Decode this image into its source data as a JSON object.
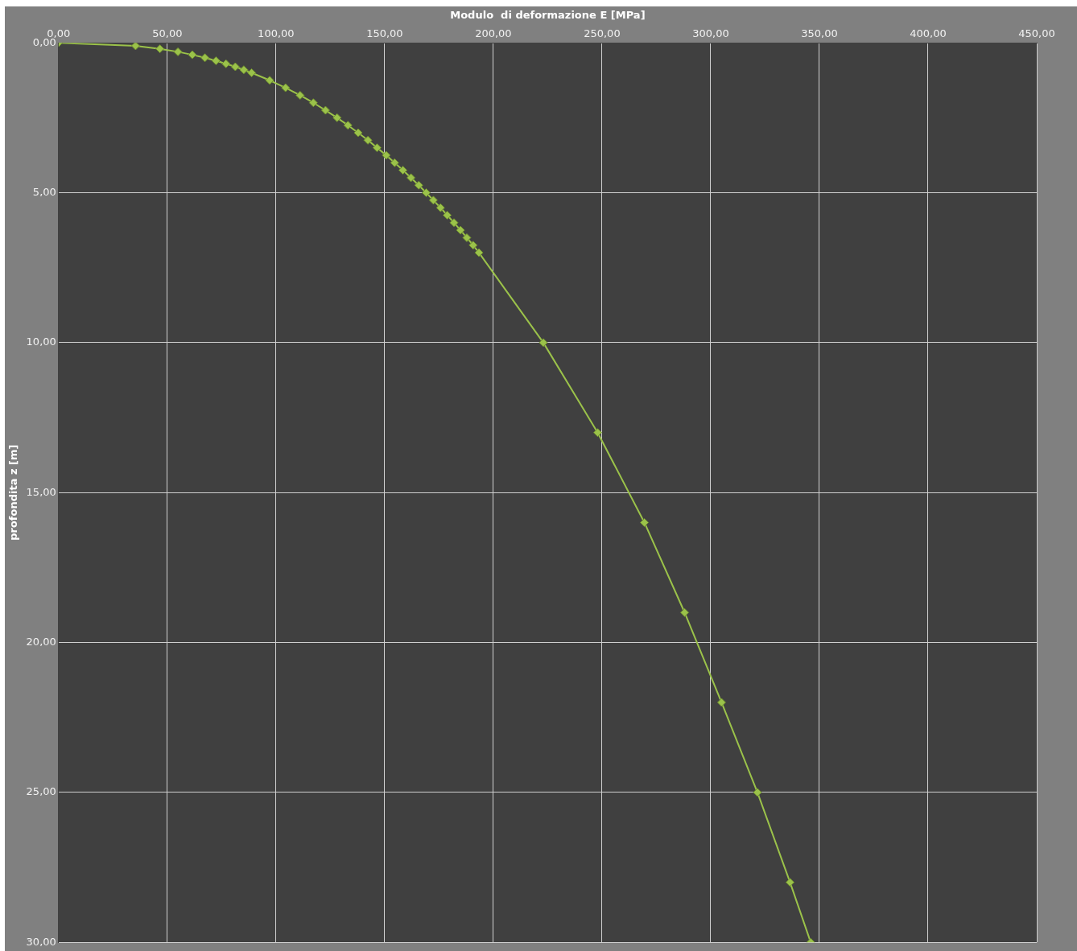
{
  "chart_data": {
    "type": "line",
    "xlabel": "Modulo  di deformazione E [MPa]",
    "ylabel": "profondita z [m]",
    "x": [
      0,
      35.4,
      46.6,
      54.9,
      61.5,
      67.3,
      72.4,
      77.0,
      81.3,
      85.2,
      88.8,
      97.1,
      104.4,
      111.1,
      117.2,
      122.8,
      128.1,
      133.1,
      137.8,
      142.3,
      146.5,
      150.7,
      154.6,
      158.4,
      162.1,
      165.7,
      169.1,
      172.4,
      175.7,
      178.8,
      181.9,
      184.9,
      187.8,
      190.7,
      193.4,
      223,
      248,
      269.5,
      288,
      305,
      321.5,
      336.5,
      346
    ],
    "series": [
      {
        "color": "#9bc24a",
        "values": [
          0,
          0.1,
          0.2,
          0.3,
          0.4,
          0.5,
          0.6,
          0.7,
          0.8,
          0.9,
          1.0,
          1.25,
          1.5,
          1.75,
          2.0,
          2.25,
          2.5,
          2.75,
          3.0,
          3.25,
          3.5,
          3.75,
          4.0,
          4.25,
          4.5,
          4.75,
          5.0,
          5.25,
          5.5,
          5.75,
          6.0,
          6.25,
          6.5,
          6.75,
          7.0,
          10,
          13,
          16,
          19,
          22,
          25,
          28,
          30
        ]
      }
    ],
    "xlim": [
      0,
      450
    ],
    "ylim": [
      30,
      0
    ],
    "xticks": [
      {
        "value": 0,
        "label": "0,00"
      },
      {
        "value": 50,
        "label": "50,00"
      },
      {
        "value": 100,
        "label": "100,00"
      },
      {
        "value": 150,
        "label": "150,00"
      },
      {
        "value": 200,
        "label": "200,00"
      },
      {
        "value": 250,
        "label": "250,00"
      },
      {
        "value": 300,
        "label": "300,00"
      },
      {
        "value": 350,
        "label": "350,00"
      },
      {
        "value": 400,
        "label": "400,00"
      },
      {
        "value": 450,
        "label": "450,00"
      }
    ],
    "yticks": [
      {
        "value": 0,
        "label": "0,00"
      },
      {
        "value": 5,
        "label": "5,00"
      },
      {
        "value": 10,
        "label": "10,00"
      },
      {
        "value": 15,
        "label": "15,00"
      },
      {
        "value": 20,
        "label": "20,00"
      },
      {
        "value": 25,
        "label": "25,00"
      },
      {
        "value": 30,
        "label": "30,00"
      }
    ],
    "grid": true,
    "legend": false,
    "marker": "diamond",
    "line_style": "solid"
  }
}
